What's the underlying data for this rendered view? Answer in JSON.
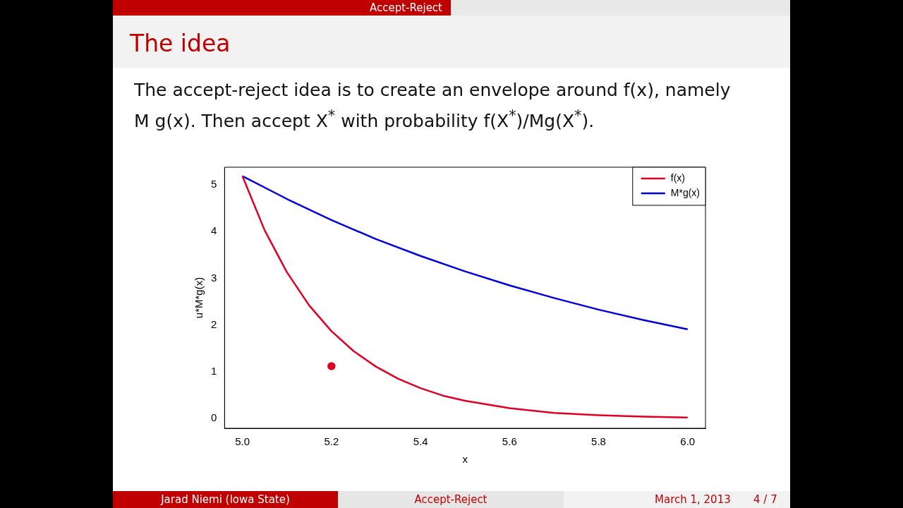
{
  "chart_data": {
    "type": "line",
    "title": "The idea",
    "subtitle": "The accept-reject idea is to create an envelope around f(x), namely M g(x). Then accept X$^{*}$ with probability f(X$^{*}$)/Mg(X$^{*}$).",
    "xlabel": "x",
    "ylabel": "u*M*g(x)",
    "xlim": [
      4.96,
      6.04
    ],
    "ylim": [
      -0.21,
      5.38
    ],
    "xticks": [
      {
        "value": 5,
        "label": "5.0"
      },
      5.2,
      5.4,
      5.6,
      5.8,
      {
        "value": 6,
        "label": "6.0"
      }
    ],
    "yticks": [
      0,
      1,
      2,
      3,
      4,
      5
    ],
    "grid": false,
    "legend": "top right",
    "marker": "none",
    "line_style": "solid",
    "series": [
      {
        "name": "f(x)",
        "color": "#dd0022",
        "x": [
          5,
          5.05,
          5.1,
          5.15,
          5.2,
          5.25,
          5.3,
          5.35,
          5.4,
          5.45,
          5.5,
          5.6,
          5.7,
          5.8,
          5.9,
          6
        ],
        "values": [
          5.19,
          4.03,
          3.13,
          2.42,
          1.87,
          1.44,
          1.11,
          0.85,
          0.65,
          0.49,
          0.38,
          0.22,
          0.12,
          0.07,
          0.04,
          0.02
        ]
      },
      {
        "name": "M*g(x)",
        "color": "#0000dd",
        "x": [
          5,
          5.1,
          5.2,
          5.3,
          5.4,
          5.5,
          5.6,
          5.7,
          5.8,
          5.9,
          6
        ],
        "values": [
          5.19,
          4.7,
          4.25,
          3.84,
          3.48,
          3.15,
          2.85,
          2.58,
          2.33,
          2.11,
          1.91
        ]
      },
      {
        "type": "scatter",
        "marker": "circle",
        "color": "#dd0022",
        "x": [
          5.2
        ],
        "values": [
          1.12
        ]
      }
    ],
    "annotations": [
      "Accept-Reject",
      "Jarad Niemi  (Iowa State)",
      "Accept-Reject",
      "March 1, 2013",
      "4 / 7"
    ]
  }
}
